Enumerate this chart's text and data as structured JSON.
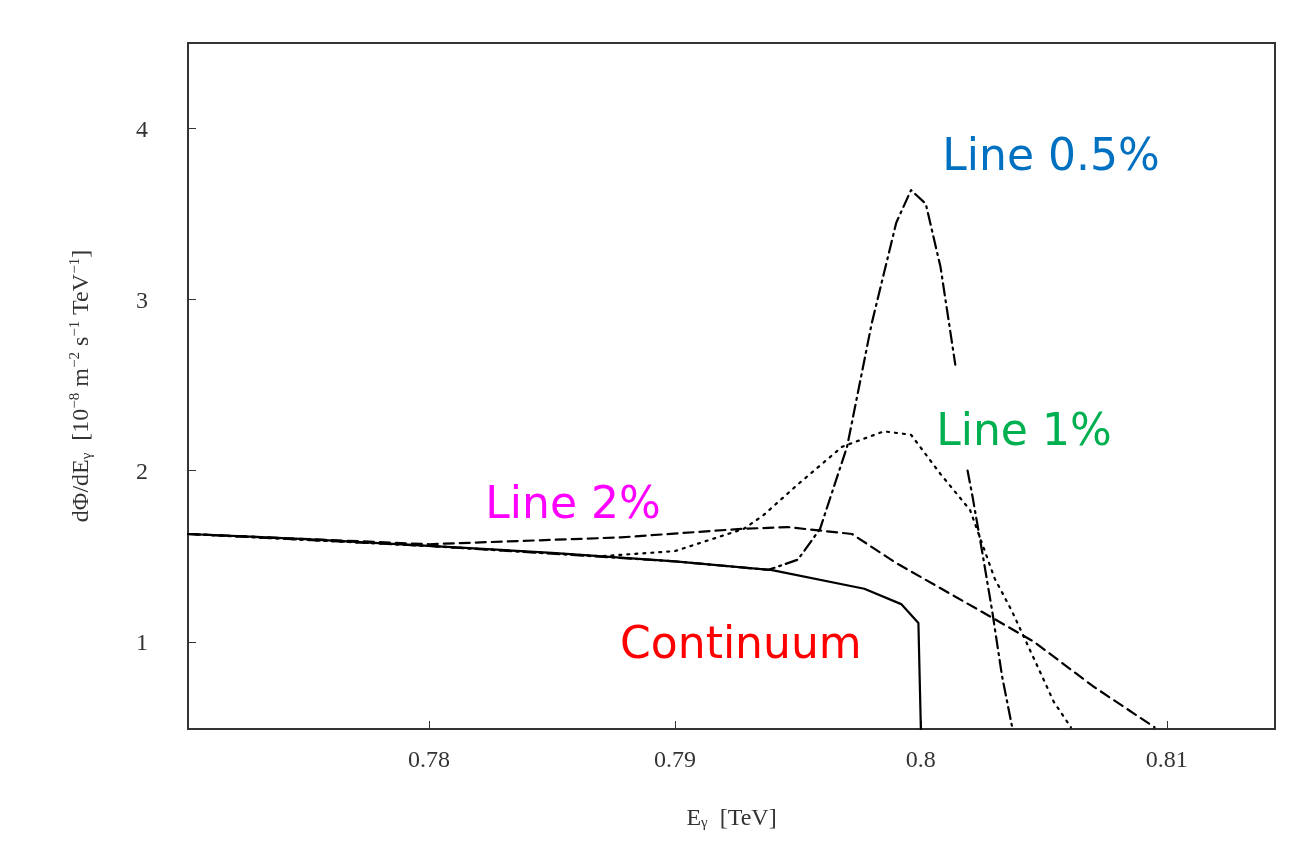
{
  "chart_data": {
    "type": "line",
    "xlabel": "E$_{γ}$  [TeV]",
    "ylabel": "dΦ/dE$_{γ}$  [10$^{−8}$ m$^{−2}$ s$^{−1}$ TeV$^{−1}$]",
    "xlim": [
      0.7702,
      0.8144
    ],
    "xticks": [
      0.78,
      0.79,
      0.8,
      0.81
    ],
    "ylim": [
      0.49,
      4.5
    ],
    "yticks": [
      1,
      2,
      3,
      4
    ],
    "grid": false,
    "legend": false,
    "marker": "none",
    "series": [
      {
        "name": "Continuum",
        "color": "#000000",
        "line_style": "solid",
        "x": [
          0.7702,
          0.775,
          0.78,
          0.785,
          0.79,
          0.7939,
          0.7977,
          0.7992,
          0.7999,
          0.8
        ],
        "values": [
          1.63,
          1.6,
          1.56,
          1.52,
          1.47,
          1.42,
          1.31,
          1.22,
          1.11,
          0.49
        ]
      },
      {
        "name": "Line 2%",
        "color": "#000000",
        "line_style": "dashed",
        "x": [
          0.7702,
          0.78,
          0.7878,
          0.7927,
          0.7946,
          0.7972,
          0.799,
          0.8023,
          0.8046,
          0.807,
          0.8095
        ],
        "values": [
          1.63,
          1.57,
          1.61,
          1.66,
          1.67,
          1.63,
          1.46,
          1.19,
          1.0,
          0.74,
          0.5
        ]
      },
      {
        "name": "Line 1%",
        "color": "#000000",
        "line_style": "dotted",
        "x": [
          0.7702,
          0.78,
          0.787,
          0.79,
          0.7928,
          0.7936,
          0.795,
          0.7968,
          0.7985,
          0.7996,
          0.8008,
          0.802,
          0.803,
          0.8037,
          0.8047,
          0.8054,
          0.8061
        ],
        "values": [
          1.63,
          1.56,
          1.5,
          1.53,
          1.66,
          1.74,
          1.92,
          2.14,
          2.23,
          2.21,
          1.98,
          1.77,
          1.37,
          1.18,
          0.87,
          0.65,
          0.5
        ]
      },
      {
        "name": "Line 0.5%",
        "color": "#000000",
        "line_style": "dashdot",
        "x": [
          0.7702,
          0.78,
          0.79,
          0.7938,
          0.795,
          0.7959,
          0.797,
          0.798,
          0.799,
          0.7996,
          0.8002,
          0.8008,
          0.8014,
          0.8017,
          0.8019,
          0.8021,
          0.8025,
          0.8029,
          0.8033,
          0.8037
        ],
        "values": [
          1.63,
          1.56,
          1.47,
          1.42,
          1.48,
          1.66,
          2.14,
          2.86,
          3.45,
          3.64,
          3.56,
          3.19,
          2.62,
          null,
          2.0,
          1.85,
          1.52,
          1.18,
          0.8,
          0.51
        ]
      }
    ]
  }
}
